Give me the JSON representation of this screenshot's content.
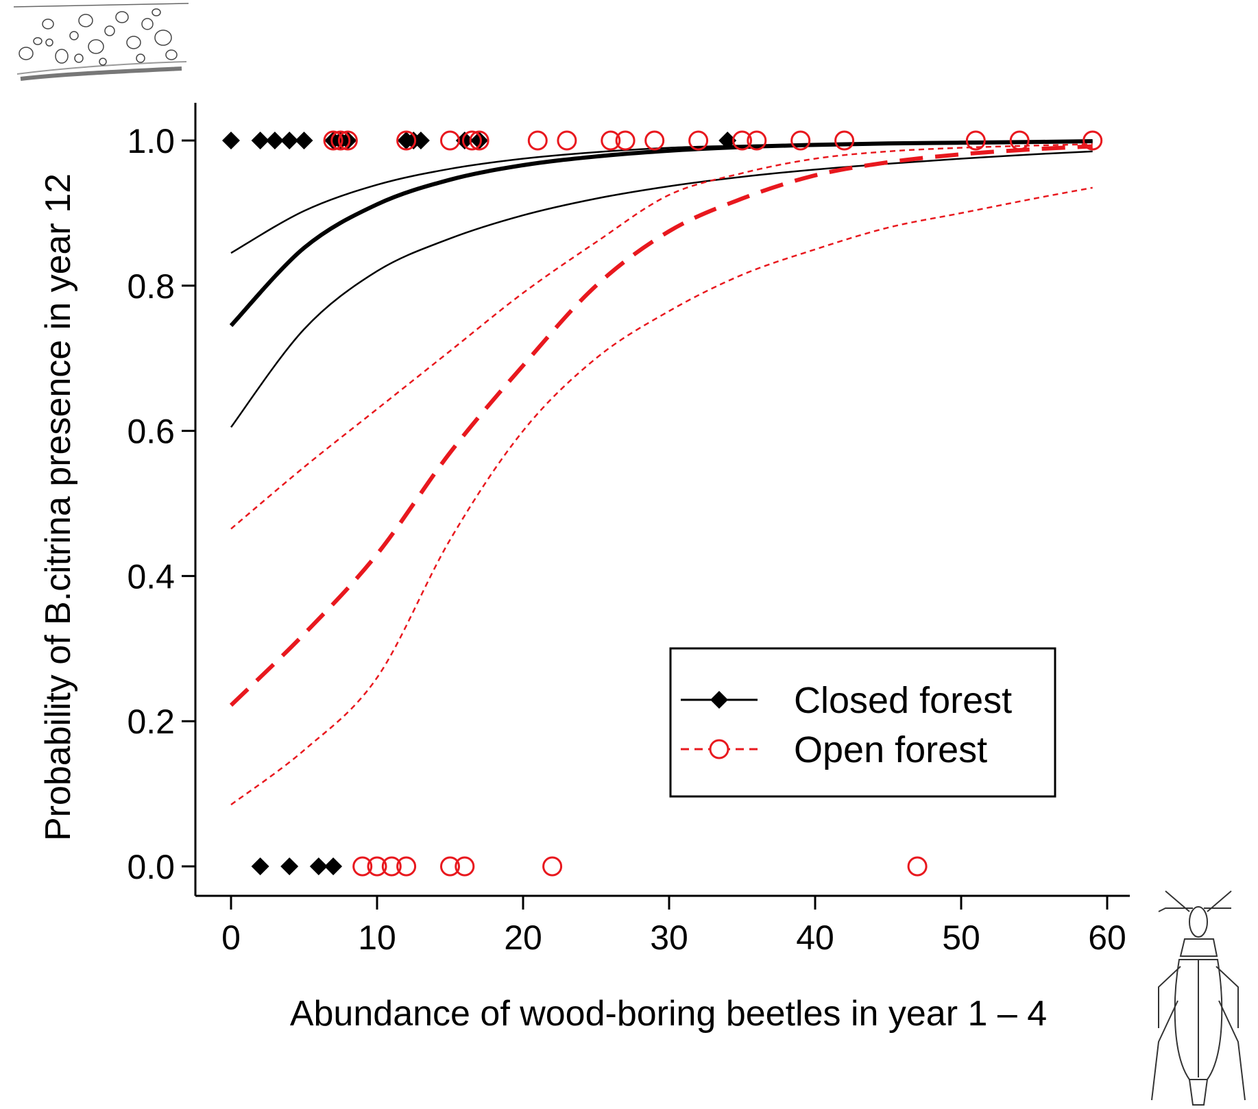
{
  "chart_data": {
    "type": "scatter",
    "title": "",
    "xlabel": "Abundance of wood-boring beetles in year 1 – 4",
    "ylabel": "Probability of B.citrina presence in year 12",
    "xlim": [
      0,
      60
    ],
    "ylim": [
      0,
      1
    ],
    "xticks": [
      "0",
      "10",
      "20",
      "30",
      "40",
      "50",
      "60"
    ],
    "yticks": [
      "0.0",
      "0.2",
      "0.4",
      "0.6",
      "0.8",
      "1.0"
    ],
    "grid": false,
    "legend": {
      "placement": "bottom-right",
      "entries": [
        "Closed forest",
        "Open forest"
      ]
    },
    "colors": {
      "closed": "#000000",
      "open": "#e8181e"
    },
    "series": [
      {
        "name": "Closed forest",
        "marker": "filled-diamond",
        "line_style": "solid",
        "points": [
          [
            0,
            1
          ],
          [
            2,
            1
          ],
          [
            3,
            1
          ],
          [
            4,
            1
          ],
          [
            5,
            1
          ],
          [
            7,
            1
          ],
          [
            7.5,
            1
          ],
          [
            8,
            1
          ],
          [
            12,
            1
          ],
          [
            12.5,
            1
          ],
          [
            13,
            1
          ],
          [
            16,
            1
          ],
          [
            17,
            1
          ],
          [
            34,
            1
          ],
          [
            2,
            0
          ],
          [
            4,
            0
          ],
          [
            6,
            0
          ],
          [
            7,
            0
          ]
        ],
        "fit": {
          "x": [
            0,
            5,
            10,
            15,
            20,
            25,
            30,
            35,
            40,
            45,
            50,
            55,
            59
          ],
          "y": [
            0.745,
            0.852,
            0.912,
            0.946,
            0.966,
            0.978,
            0.986,
            0.991,
            0.994,
            0.996,
            0.997,
            0.998,
            0.999
          ]
        },
        "ci_upper": {
          "x": [
            0,
            5,
            10,
            15,
            20,
            25,
            30,
            35,
            40,
            45,
            50,
            55,
            59
          ],
          "y": [
            0.845,
            0.903,
            0.939,
            0.961,
            0.975,
            0.984,
            0.99,
            0.993,
            0.995,
            0.997,
            0.998,
            0.998,
            0.999
          ]
        },
        "ci_lower": {
          "x": [
            0,
            5,
            10,
            15,
            20,
            25,
            30,
            35,
            40,
            45,
            50,
            55,
            59
          ],
          "y": [
            0.605,
            0.74,
            0.82,
            0.865,
            0.897,
            0.92,
            0.937,
            0.95,
            0.96,
            0.968,
            0.975,
            0.981,
            0.985
          ]
        }
      },
      {
        "name": "Open forest",
        "marker": "open-circle",
        "line_style": "dashed",
        "points": [
          [
            7,
            1
          ],
          [
            7.5,
            1
          ],
          [
            8,
            1
          ],
          [
            12,
            1
          ],
          [
            15,
            1
          ],
          [
            16.5,
            1
          ],
          [
            17,
            1
          ],
          [
            21,
            1
          ],
          [
            23,
            1
          ],
          [
            26,
            1
          ],
          [
            27,
            1
          ],
          [
            29,
            1
          ],
          [
            32,
            1
          ],
          [
            35,
            1
          ],
          [
            36,
            1
          ],
          [
            39,
            1
          ],
          [
            42,
            1
          ],
          [
            51,
            1
          ],
          [
            54,
            1
          ],
          [
            59,
            1
          ],
          [
            9,
            0
          ],
          [
            10,
            0
          ],
          [
            11,
            0
          ],
          [
            12,
            0
          ],
          [
            15,
            0
          ],
          [
            16,
            0
          ],
          [
            22,
            0
          ],
          [
            47,
            0
          ]
        ],
        "fit": {
          "x": [
            0,
            5,
            10,
            15,
            20,
            25,
            30,
            35,
            40,
            45,
            50,
            55,
            59
          ],
          "y": [
            0.222,
            0.32,
            0.43,
            0.57,
            0.69,
            0.8,
            0.875,
            0.92,
            0.952,
            0.97,
            0.981,
            0.988,
            0.992
          ]
        },
        "ci_upper": {
          "x": [
            0,
            5,
            10,
            15,
            20,
            25,
            30,
            35,
            40,
            45,
            50,
            55,
            59
          ],
          "y": [
            0.465,
            0.55,
            0.63,
            0.71,
            0.79,
            0.86,
            0.925,
            0.955,
            0.975,
            0.985,
            0.99,
            0.993,
            0.995
          ]
        },
        "ci_lower": {
          "x": [
            0,
            5,
            10,
            15,
            20,
            25,
            30,
            35,
            40,
            45,
            50,
            55,
            59
          ],
          "y": [
            0.085,
            0.16,
            0.26,
            0.45,
            0.6,
            0.7,
            0.765,
            0.815,
            0.85,
            0.88,
            0.9,
            0.92,
            0.935
          ]
        }
      }
    ]
  },
  "illustrations": {
    "top_left": "lichen-on-bark-icon",
    "bottom_right": "beetle-icon"
  }
}
